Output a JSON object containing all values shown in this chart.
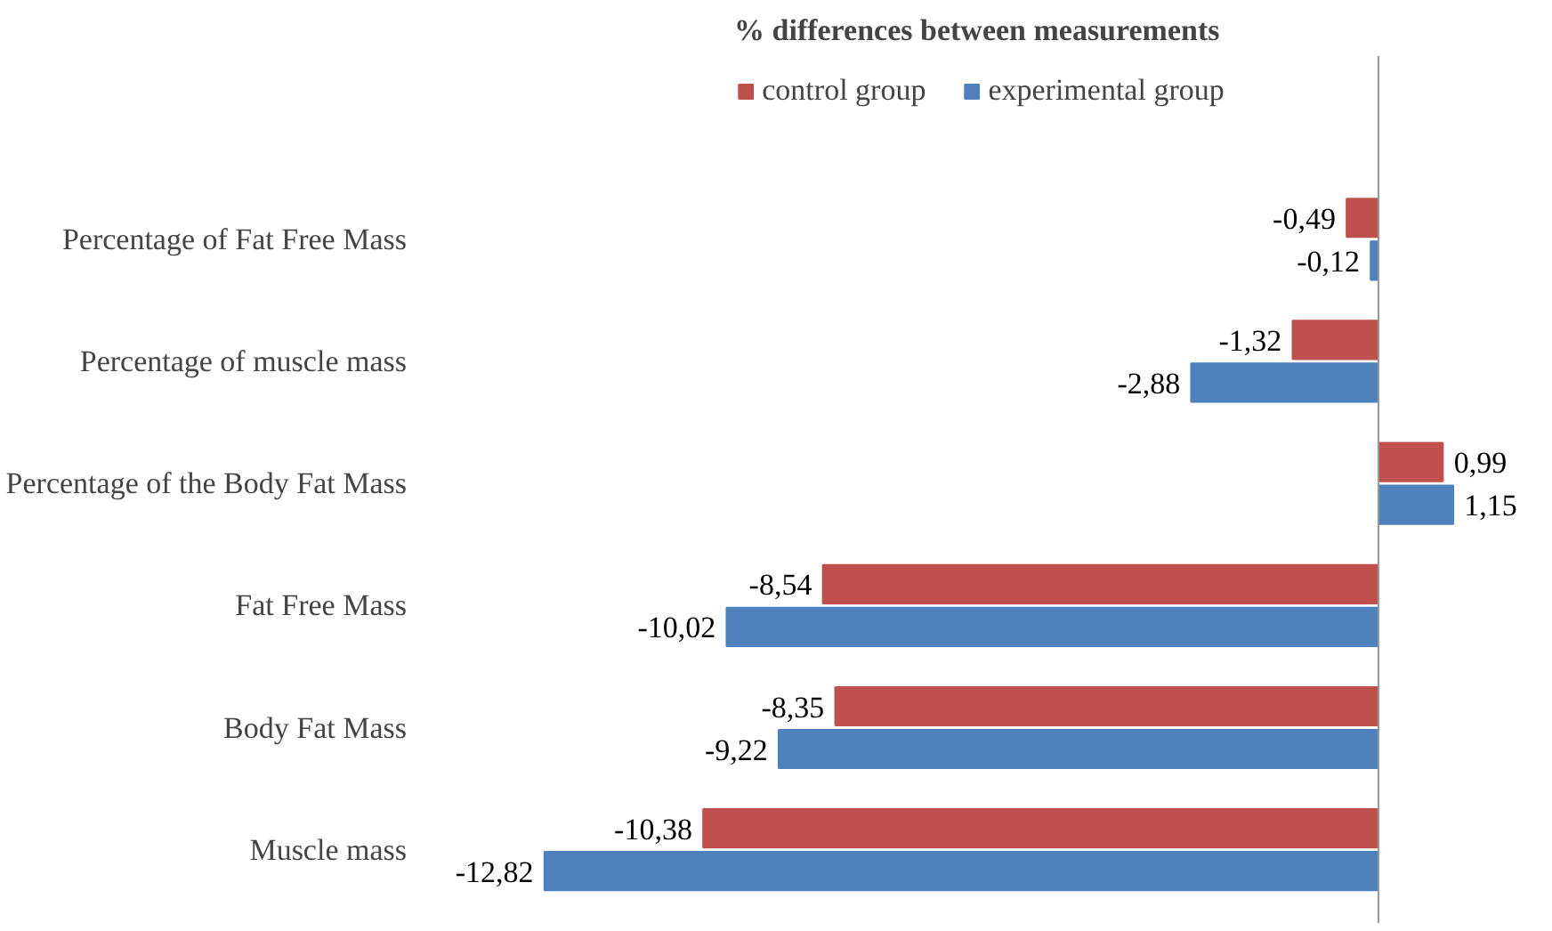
{
  "chart_data": {
    "type": "bar",
    "orientation": "horizontal",
    "title": "% differences  between measurements",
    "categories": [
      "Percentage of Fat Free Mass",
      "Percentage of muscle mass",
      "Percentage of the Body Fat Mass",
      "Fat Free Mass",
      "Body Fat Mass",
      "Muscle mass"
    ],
    "series": [
      {
        "name": "control group",
        "color": "#c0504d",
        "values": [
          -0.49,
          -1.32,
          0.99,
          -8.54,
          -8.35,
          -10.38
        ],
        "value_labels": [
          "-0,49",
          "-1,32",
          "0,99",
          "-8,54",
          "-8,35",
          "-10,38"
        ]
      },
      {
        "name": "experimental group",
        "color": "#4f81bd",
        "values": [
          -0.12,
          -2.88,
          1.15,
          -10.02,
          -9.22,
          -12.82
        ],
        "value_labels": [
          "-0,12",
          "-2,88",
          "1,15",
          "-10,02",
          "-9,22",
          "-12,82"
        ]
      }
    ],
    "legend": "top"
  }
}
